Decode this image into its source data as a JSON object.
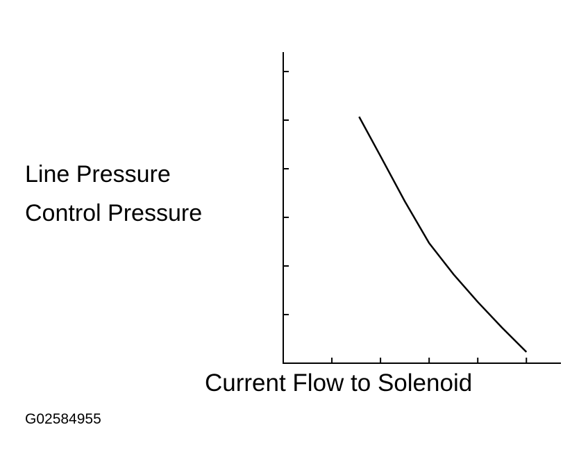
{
  "chart_data": {
    "type": "line",
    "y_label_lines": [
      "Line Pressure",
      "Control Pressure"
    ],
    "x_label": "Current Flow to Solenoid",
    "figure_id": "G02584955",
    "x": [
      1.56,
      2.0,
      2.5,
      3.0,
      3.5,
      4.0,
      4.5,
      5.0
    ],
    "series": [
      {
        "color": "#000000",
        "values": [
          5.07,
          4.26,
          3.33,
          2.47,
          1.83,
          1.26,
          0.73,
          0.23
        ]
      }
    ],
    "xlim": [
      0,
      5.71
    ],
    "ylim": [
      0,
      6.4
    ],
    "xticks": [
      1,
      2,
      3,
      4,
      5
    ],
    "yticks": [
      1,
      2,
      3,
      4,
      5,
      6
    ],
    "grid": false
  }
}
